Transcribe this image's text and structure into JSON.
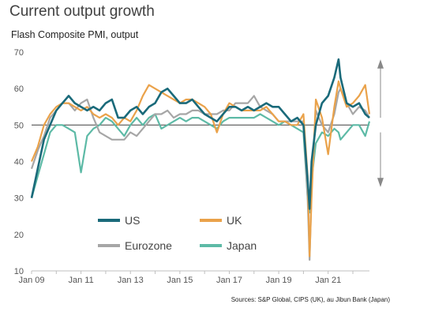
{
  "header": {
    "title": "Current output growth",
    "subtitle": "Flash Composite PMI, output",
    "source": "Sources: S&P Global, CIPS (UK), au Jibun Bank (Japan)"
  },
  "chart_data": {
    "type": "line",
    "title": "Current output growth",
    "ylabel": "Flash Composite PMI, output",
    "xlabel": "",
    "ylim": [
      10,
      70
    ],
    "yticks": [
      10,
      20,
      30,
      40,
      50,
      60,
      70
    ],
    "xlim": [
      2009.0,
      2022.67
    ],
    "xtick_labels": [
      "Jan 09",
      "Jan 11",
      "Jan 13",
      "Jan 15",
      "Jan 17",
      "Jan 19",
      "Jan 21"
    ],
    "xtick_positions": [
      2009,
      2011,
      2013,
      2015,
      2017,
      2019,
      2021
    ],
    "reference_line": 50,
    "annotation": "double-headed arrow at right from about 67 down to 33",
    "grid": false,
    "legend_position": "lower-left inside",
    "x": [
      2009.0,
      2009.25,
      2009.5,
      2009.75,
      2010.0,
      2010.25,
      2010.5,
      2010.75,
      2011.0,
      2011.25,
      2011.5,
      2011.75,
      2012.0,
      2012.25,
      2012.5,
      2012.75,
      2013.0,
      2013.25,
      2013.5,
      2013.75,
      2014.0,
      2014.25,
      2014.5,
      2014.75,
      2015.0,
      2015.25,
      2015.5,
      2015.75,
      2016.0,
      2016.25,
      2016.5,
      2016.75,
      2017.0,
      2017.25,
      2017.5,
      2017.75,
      2018.0,
      2018.25,
      2018.5,
      2018.75,
      2019.0,
      2019.25,
      2019.5,
      2019.75,
      2020.0,
      2020.17,
      2020.25,
      2020.33,
      2020.5,
      2020.75,
      2021.0,
      2021.25,
      2021.42,
      2021.5,
      2021.75,
      2022.0,
      2022.25,
      2022.5,
      2022.67
    ],
    "series": [
      {
        "name": "US",
        "color": "#1a6a7a",
        "values": [
          30,
          38,
          46,
          50,
          54,
          56,
          58,
          56,
          55,
          54,
          55,
          54,
          56,
          57,
          52,
          52,
          54,
          55,
          53,
          55,
          56,
          59,
          60,
          58,
          56,
          56,
          57,
          55,
          53,
          52,
          51,
          53,
          55,
          55,
          54,
          55,
          54,
          55,
          56,
          55,
          55,
          53,
          51,
          52,
          50,
          35,
          27,
          40,
          50,
          56,
          58,
          63,
          68,
          63,
          56,
          55,
          56,
          53,
          52
        ]
      },
      {
        "name": "UK",
        "color": "#eaa24a",
        "values": [
          40,
          44,
          50,
          53,
          55,
          56,
          56,
          55,
          54,
          55,
          53,
          52,
          53,
          52,
          50,
          52,
          51,
          54,
          58,
          61,
          60,
          59,
          58,
          57,
          56,
          57,
          57,
          56,
          55,
          53,
          48,
          53,
          56,
          55,
          54,
          54,
          54,
          54,
          55,
          53,
          51,
          51,
          50,
          50,
          53,
          36,
          14,
          30,
          57,
          52,
          42,
          55,
          62,
          60,
          55,
          56,
          58,
          61,
          53
        ]
      },
      {
        "name": "Eurozone",
        "color": "#a6a6a6",
        "values": [
          38,
          43,
          47,
          52,
          54,
          56,
          56,
          54,
          56,
          57,
          52,
          48,
          47,
          46,
          46,
          46,
          48,
          47,
          49,
          51,
          53,
          53,
          54,
          52,
          53,
          53,
          54,
          54,
          53,
          53,
          53,
          54,
          54,
          56,
          56,
          56,
          58,
          55,
          54,
          53,
          51,
          51,
          51,
          51,
          51,
          30,
          13,
          32,
          54,
          50,
          48,
          53,
          59,
          60,
          56,
          53,
          55,
          54,
          52
        ]
      },
      {
        "name": "Japan",
        "color": "#5dbaa6",
        "values": [
          30,
          36,
          42,
          48,
          50,
          50,
          49,
          48,
          37,
          47,
          49,
          50,
          52,
          51,
          49,
          47,
          50,
          52,
          50,
          52,
          53,
          49,
          50,
          51,
          52,
          51,
          52,
          52,
          51,
          50,
          49,
          51,
          52,
          52,
          52,
          52,
          52,
          53,
          52,
          51,
          50,
          51,
          50,
          49,
          48,
          30,
          26,
          35,
          45,
          48,
          47,
          49,
          48,
          46,
          48,
          50,
          50,
          47,
          51
        ]
      }
    ]
  }
}
